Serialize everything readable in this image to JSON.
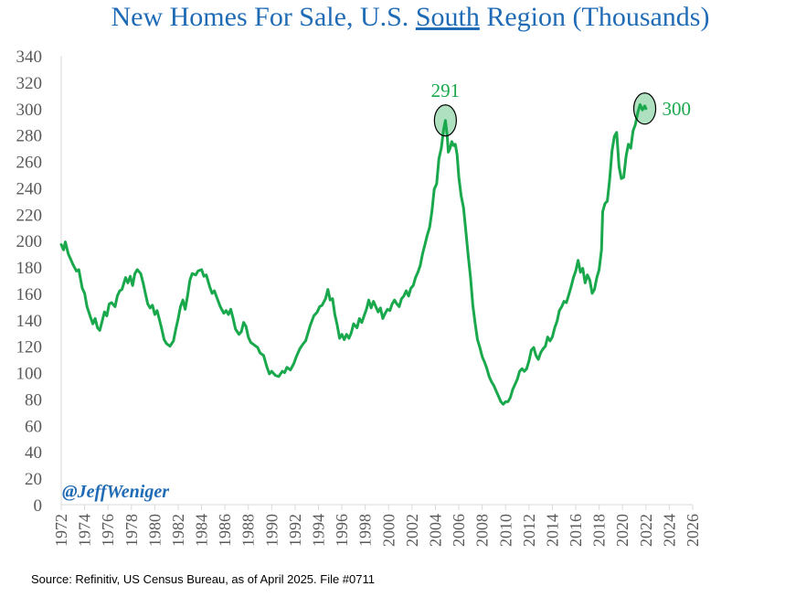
{
  "chart_data": {
    "type": "line",
    "title_pre": "New Homes For Sale, U.S. ",
    "title_underlined": "South",
    "title_post": " Region (Thousands)",
    "xlabel": "",
    "ylabel": "",
    "xlim": [
      1972,
      2026
    ],
    "ylim": [
      0,
      340
    ],
    "y_ticks": [
      0,
      20,
      40,
      60,
      80,
      100,
      120,
      140,
      160,
      180,
      200,
      220,
      240,
      260,
      280,
      300,
      320,
      340
    ],
    "x_ticks": [
      1972,
      1974,
      1976,
      1978,
      1980,
      1982,
      1984,
      1986,
      1988,
      1990,
      1992,
      1994,
      1996,
      1998,
      2000,
      2002,
      2004,
      2006,
      2008,
      2010,
      2012,
      2014,
      2016,
      2018,
      2020,
      2022,
      2024,
      2026
    ],
    "grid": false,
    "series": [
      {
        "name": "",
        "color": "#19a84c",
        "points": [
          [
            1972.0,
            197
          ],
          [
            1972.2,
            193
          ],
          [
            1972.35,
            199
          ],
          [
            1972.6,
            190
          ],
          [
            1973.0,
            182
          ],
          [
            1973.3,
            177
          ],
          [
            1973.5,
            178
          ],
          [
            1973.8,
            164
          ],
          [
            1974.0,
            160
          ],
          [
            1974.2,
            150
          ],
          [
            1974.5,
            142
          ],
          [
            1974.7,
            137
          ],
          [
            1974.9,
            141
          ],
          [
            1975.1,
            134
          ],
          [
            1975.3,
            132
          ],
          [
            1975.5,
            139
          ],
          [
            1975.7,
            146
          ],
          [
            1975.9,
            143
          ],
          [
            1976.1,
            152
          ],
          [
            1976.3,
            153
          ],
          [
            1976.6,
            150
          ],
          [
            1976.8,
            158
          ],
          [
            1977.0,
            162
          ],
          [
            1977.2,
            163
          ],
          [
            1977.5,
            172
          ],
          [
            1977.7,
            168
          ],
          [
            1977.9,
            173
          ],
          [
            1978.1,
            166
          ],
          [
            1978.3,
            175
          ],
          [
            1978.5,
            178
          ],
          [
            1978.8,
            175
          ],
          [
            1979.0,
            168
          ],
          [
            1979.2,
            160
          ],
          [
            1979.4,
            152
          ],
          [
            1979.6,
            149
          ],
          [
            1979.8,
            151
          ],
          [
            1980.0,
            144
          ],
          [
            1980.2,
            147
          ],
          [
            1980.4,
            140
          ],
          [
            1980.6,
            133
          ],
          [
            1980.8,
            125
          ],
          [
            1981.0,
            122
          ],
          [
            1981.3,
            120
          ],
          [
            1981.6,
            124
          ],
          [
            1981.8,
            133
          ],
          [
            1982.0,
            141
          ],
          [
            1982.2,
            150
          ],
          [
            1982.4,
            155
          ],
          [
            1982.6,
            148
          ],
          [
            1982.8,
            158
          ],
          [
            1983.0,
            170
          ],
          [
            1983.2,
            175
          ],
          [
            1983.5,
            174
          ],
          [
            1983.7,
            177
          ],
          [
            1984.0,
            178
          ],
          [
            1984.2,
            173
          ],
          [
            1984.4,
            174
          ],
          [
            1984.7,
            165
          ],
          [
            1984.9,
            160
          ],
          [
            1985.1,
            162
          ],
          [
            1985.3,
            157
          ],
          [
            1985.6,
            150
          ],
          [
            1985.9,
            145
          ],
          [
            1986.1,
            147
          ],
          [
            1986.3,
            144
          ],
          [
            1986.5,
            148
          ],
          [
            1986.7,
            141
          ],
          [
            1986.9,
            133
          ],
          [
            1987.2,
            129
          ],
          [
            1987.4,
            131
          ],
          [
            1987.6,
            138
          ],
          [
            1987.8,
            135
          ],
          [
            1988.0,
            127
          ],
          [
            1988.2,
            123
          ],
          [
            1988.5,
            121
          ],
          [
            1988.8,
            119
          ],
          [
            1989.0,
            115
          ],
          [
            1989.3,
            113
          ],
          [
            1989.6,
            104
          ],
          [
            1989.8,
            99
          ],
          [
            1990.0,
            101
          ],
          [
            1990.3,
            98
          ],
          [
            1990.6,
            97
          ],
          [
            1990.9,
            101
          ],
          [
            1991.1,
            100
          ],
          [
            1991.3,
            104
          ],
          [
            1991.6,
            102
          ],
          [
            1991.9,
            107
          ],
          [
            1992.1,
            112
          ],
          [
            1992.4,
            118
          ],
          [
            1992.7,
            122
          ],
          [
            1992.9,
            124
          ],
          [
            1993.1,
            130
          ],
          [
            1993.3,
            136
          ],
          [
            1993.6,
            143
          ],
          [
            1993.9,
            146
          ],
          [
            1994.1,
            150
          ],
          [
            1994.3,
            151
          ],
          [
            1994.6,
            156
          ],
          [
            1994.8,
            163
          ],
          [
            1995.0,
            155
          ],
          [
            1995.2,
            156
          ],
          [
            1995.4,
            144
          ],
          [
            1995.6,
            136
          ],
          [
            1995.8,
            126
          ],
          [
            1996.0,
            129
          ],
          [
            1996.2,
            125
          ],
          [
            1996.4,
            129
          ],
          [
            1996.6,
            126
          ],
          [
            1996.8,
            130
          ],
          [
            1997.0,
            137
          ],
          [
            1997.3,
            134
          ],
          [
            1997.5,
            141
          ],
          [
            1997.7,
            138
          ],
          [
            1997.9,
            143
          ],
          [
            1998.1,
            148
          ],
          [
            1998.3,
            155
          ],
          [
            1998.5,
            149
          ],
          [
            1998.7,
            154
          ],
          [
            1998.9,
            150
          ],
          [
            1999.1,
            146
          ],
          [
            1999.3,
            149
          ],
          [
            1999.5,
            141
          ],
          [
            1999.7,
            145
          ],
          [
            1999.9,
            148
          ],
          [
            2000.1,
            147
          ],
          [
            2000.3,
            152
          ],
          [
            2000.5,
            155
          ],
          [
            2000.7,
            152
          ],
          [
            2000.9,
            150
          ],
          [
            2001.1,
            156
          ],
          [
            2001.3,
            158
          ],
          [
            2001.5,
            162
          ],
          [
            2001.7,
            158
          ],
          [
            2001.9,
            164
          ],
          [
            2002.1,
            166
          ],
          [
            2002.3,
            172
          ],
          [
            2002.5,
            176
          ],
          [
            2002.7,
            181
          ],
          [
            2002.9,
            190
          ],
          [
            2003.1,
            197
          ],
          [
            2003.3,
            204
          ],
          [
            2003.5,
            210
          ],
          [
            2003.7,
            222
          ],
          [
            2003.9,
            239
          ],
          [
            2004.1,
            243
          ],
          [
            2004.3,
            262
          ],
          [
            2004.5,
            270
          ],
          [
            2004.7,
            284
          ],
          [
            2004.85,
            291
          ],
          [
            2005.0,
            280
          ],
          [
            2005.1,
            267
          ],
          [
            2005.25,
            270
          ],
          [
            2005.4,
            275
          ],
          [
            2005.55,
            272
          ],
          [
            2005.7,
            273
          ],
          [
            2005.85,
            265
          ],
          [
            2006.0,
            248
          ],
          [
            2006.2,
            234
          ],
          [
            2006.4,
            225
          ],
          [
            2006.6,
            207
          ],
          [
            2006.8,
            189
          ],
          [
            2007.0,
            172
          ],
          [
            2007.2,
            151
          ],
          [
            2007.4,
            137
          ],
          [
            2007.6,
            125
          ],
          [
            2007.8,
            119
          ],
          [
            2008.0,
            112
          ],
          [
            2008.2,
            108
          ],
          [
            2008.4,
            103
          ],
          [
            2008.6,
            97
          ],
          [
            2008.8,
            93
          ],
          [
            2009.0,
            90
          ],
          [
            2009.2,
            86
          ],
          [
            2009.4,
            82
          ],
          [
            2009.6,
            78
          ],
          [
            2009.8,
            76
          ],
          [
            2010.0,
            78
          ],
          [
            2010.2,
            78
          ],
          [
            2010.4,
            81
          ],
          [
            2010.6,
            87
          ],
          [
            2010.8,
            91
          ],
          [
            2011.0,
            95
          ],
          [
            2011.2,
            101
          ],
          [
            2011.4,
            103
          ],
          [
            2011.6,
            101
          ],
          [
            2011.8,
            103
          ],
          [
            2012.0,
            109
          ],
          [
            2012.2,
            117
          ],
          [
            2012.4,
            119
          ],
          [
            2012.6,
            113
          ],
          [
            2012.8,
            110
          ],
          [
            2013.0,
            115
          ],
          [
            2013.2,
            118
          ],
          [
            2013.4,
            120
          ],
          [
            2013.6,
            127
          ],
          [
            2013.8,
            124
          ],
          [
            2014.0,
            127
          ],
          [
            2014.2,
            134
          ],
          [
            2014.4,
            139
          ],
          [
            2014.6,
            147
          ],
          [
            2014.8,
            150
          ],
          [
            2015.0,
            154
          ],
          [
            2015.2,
            153
          ],
          [
            2015.4,
            159
          ],
          [
            2015.6,
            165
          ],
          [
            2015.8,
            172
          ],
          [
            2016.0,
            177
          ],
          [
            2016.2,
            185
          ],
          [
            2016.4,
            176
          ],
          [
            2016.6,
            179
          ],
          [
            2016.8,
            168
          ],
          [
            2017.0,
            174
          ],
          [
            2017.2,
            170
          ],
          [
            2017.4,
            160
          ],
          [
            2017.6,
            163
          ],
          [
            2017.8,
            172
          ],
          [
            2018.0,
            178
          ],
          [
            2018.2,
            193
          ],
          [
            2018.3,
            222
          ],
          [
            2018.5,
            228
          ],
          [
            2018.7,
            230
          ],
          [
            2018.9,
            246
          ],
          [
            2019.1,
            268
          ],
          [
            2019.3,
            279
          ],
          [
            2019.5,
            282
          ],
          [
            2019.7,
            256
          ],
          [
            2019.9,
            247
          ],
          [
            2020.1,
            248
          ],
          [
            2020.3,
            264
          ],
          [
            2020.5,
            273
          ],
          [
            2020.7,
            270
          ],
          [
            2020.9,
            283
          ],
          [
            2021.1,
            288
          ],
          [
            2021.3,
            297
          ],
          [
            2021.5,
            303
          ],
          [
            2021.7,
            299
          ],
          [
            2021.9,
            302
          ],
          [
            2022.0,
            300
          ]
        ]
      }
    ],
    "annotations": [
      {
        "label": "291",
        "x": 2004.85,
        "y": 291
      },
      {
        "label": "300",
        "x": 2021.9,
        "y": 300
      }
    ],
    "handle": "@JeffWeniger",
    "source": "Source: Refinitiv, US Census Bureau, as of April 2025. File #0711"
  }
}
